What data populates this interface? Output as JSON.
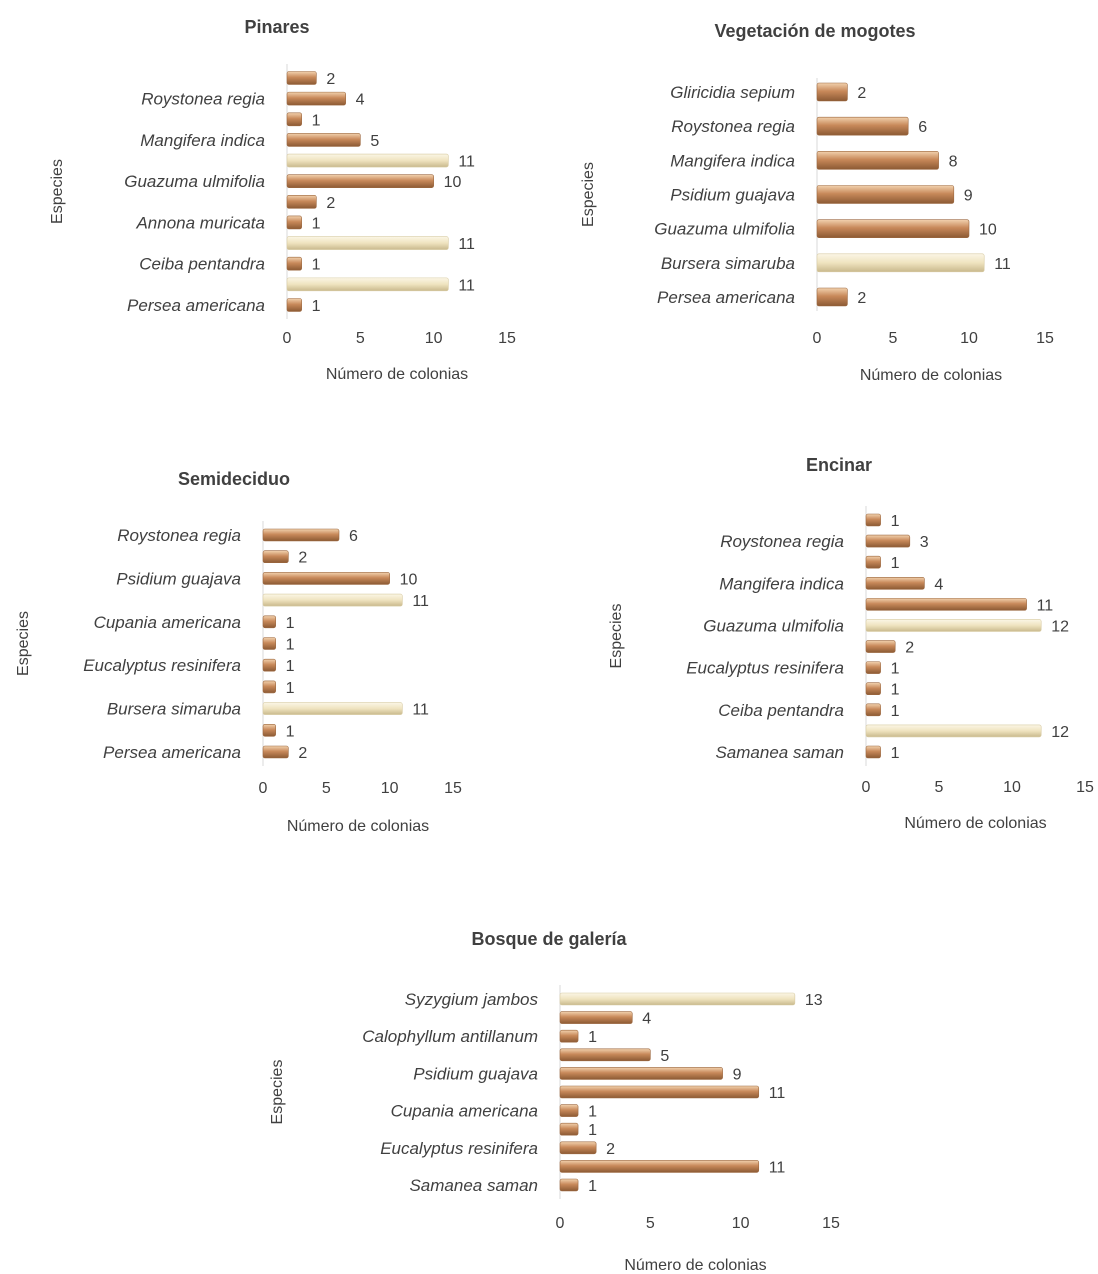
{
  "chart_data": [
    {
      "type": "bar",
      "orientation": "horizontal",
      "title": "Pinares",
      "xlabel": "Número de colonias",
      "ylabel": "Especies",
      "xlim": [
        0,
        15
      ],
      "xticks": [
        0,
        5,
        10,
        15
      ],
      "categories": [
        "Persea americana",
        "",
        "Ceiba pentandra",
        "",
        "Annona muricata",
        "",
        "Guazuma ulmifolia",
        "",
        "Mangifera indica",
        "",
        "Roystonea regia",
        ""
      ],
      "values": [
        1,
        11,
        1,
        11,
        1,
        2,
        10,
        11,
        5,
        1,
        4,
        2
      ],
      "colors": [
        "brown",
        "light",
        "brown",
        "light",
        "brown",
        "brown",
        "brown",
        "light",
        "brown",
        "brown",
        "brown",
        "brown"
      ]
    },
    {
      "type": "bar",
      "orientation": "horizontal",
      "title": "Vegetación de mogotes",
      "xlabel": "Número de colonias",
      "ylabel": "Especies",
      "xlim": [
        0,
        15
      ],
      "xticks": [
        0,
        5,
        10,
        15
      ],
      "categories": [
        "Persea americana",
        "Bursera simaruba",
        "Guazuma ulmifolia",
        "Psidium guajava",
        "Mangifera indica",
        "Roystonea regia",
        "Gliricidia sepium"
      ],
      "values": [
        2,
        11,
        10,
        9,
        8,
        6,
        2
      ],
      "colors": [
        "brown",
        "light",
        "brown",
        "brown",
        "brown",
        "brown",
        "brown"
      ]
    },
    {
      "type": "bar",
      "orientation": "horizontal",
      "title": "Semideciduo",
      "xlabel": "Número de colonias",
      "ylabel": "Especies",
      "xlim": [
        0,
        15
      ],
      "xticks": [
        0,
        5,
        10,
        15
      ],
      "categories": [
        "Persea americana",
        "",
        "Bursera simaruba",
        "",
        "Eucalyptus resinifera",
        "",
        "Cupania americana",
        "",
        "Psidium guajava",
        "",
        "Roystonea regia"
      ],
      "values": [
        2,
        1,
        11,
        1,
        1,
        1,
        1,
        11,
        10,
        2,
        6
      ],
      "colors": [
        "brown",
        "brown",
        "light",
        "brown",
        "brown",
        "brown",
        "brown",
        "light",
        "brown",
        "brown",
        "brown"
      ]
    },
    {
      "type": "bar",
      "orientation": "horizontal",
      "title": "Encinar",
      "xlabel": "Número de colonias",
      "ylabel": "Especies",
      "xlim": [
        0,
        15
      ],
      "xticks": [
        0,
        5,
        10,
        15
      ],
      "categories": [
        "Samanea saman",
        "",
        "Ceiba pentandra",
        "",
        "Eucalyptus resinifera",
        "",
        "Guazuma ulmifolia",
        "",
        "Mangifera indica",
        "",
        "Roystonea regia",
        ""
      ],
      "values": [
        1,
        12,
        1,
        1,
        1,
        2,
        12,
        11,
        4,
        1,
        3,
        1
      ],
      "colors": [
        "brown",
        "light",
        "brown",
        "brown",
        "brown",
        "brown",
        "light",
        "brown",
        "brown",
        "brown",
        "brown",
        "brown"
      ]
    },
    {
      "type": "bar",
      "orientation": "horizontal",
      "title": "Bosque de galería",
      "xlabel": "Número de colonias",
      "ylabel": "Especies",
      "xlim": [
        0,
        15
      ],
      "xticks": [
        0,
        5,
        10,
        15
      ],
      "categories": [
        "Samanea saman",
        "",
        "Eucalyptus resinifera",
        "",
        "Cupania americana",
        "",
        "Psidium guajava",
        "",
        "Calophyllum antillanum",
        "",
        "Syzygium jambos"
      ],
      "values": [
        1,
        11,
        2,
        1,
        1,
        11,
        9,
        5,
        1,
        4,
        13
      ],
      "colors": [
        "brown",
        "brown",
        "brown",
        "brown",
        "brown",
        "brown",
        "brown",
        "brown",
        "brown",
        "brown",
        "light"
      ]
    }
  ],
  "colors": {
    "brown": "#c8895a",
    "brown_dark": "#8c5a34",
    "light": "#efe3bf",
    "light_dark": "#c9b98d",
    "axis": "#d9d9d9",
    "text": "#404040"
  }
}
